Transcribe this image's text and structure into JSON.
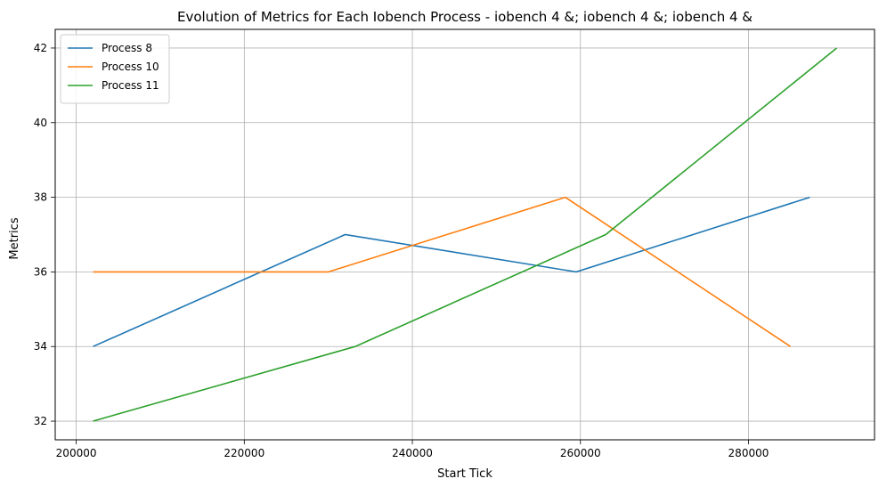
{
  "chart_data": {
    "type": "line",
    "title": "Evolution of Metrics for Each Iobench Process - iobench 4 &; iobench 4 &; iobench 4 &",
    "xlabel": "Start Tick",
    "ylabel": "Metrics",
    "xlim": [
      197500,
      295000
    ],
    "ylim": [
      31.5,
      42.5
    ],
    "xticks": [
      200000,
      220000,
      240000,
      260000,
      280000
    ],
    "yticks": [
      32,
      34,
      36,
      38,
      40,
      42
    ],
    "grid": true,
    "legend_position": "top-left",
    "series": [
      {
        "name": "Process 8",
        "color": "#1f77b4",
        "points": [
          [
            202000,
            34
          ],
          [
            232000,
            37
          ],
          [
            259500,
            36
          ],
          [
            287300,
            38
          ]
        ]
      },
      {
        "name": "Process 10",
        "color": "#ff7f0e",
        "points": [
          [
            202000,
            36
          ],
          [
            230000,
            36
          ],
          [
            258200,
            38
          ],
          [
            285000,
            34
          ]
        ]
      },
      {
        "name": "Process 11",
        "color": "#2ca02c",
        "points": [
          [
            202000,
            32
          ],
          [
            233200,
            34
          ],
          [
            263000,
            37
          ],
          [
            290500,
            42
          ]
        ]
      }
    ]
  }
}
